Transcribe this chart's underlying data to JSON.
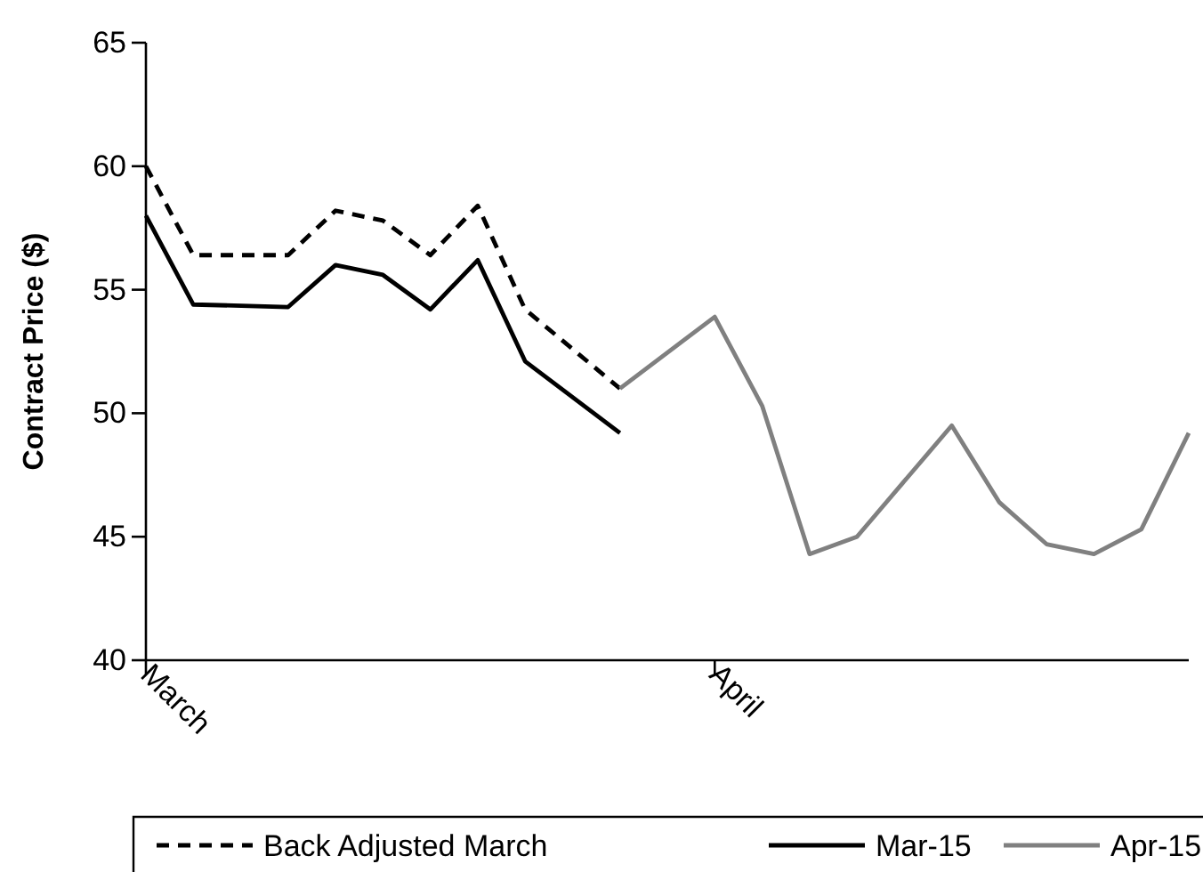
{
  "chart_data": {
    "type": "line",
    "ylabel": "Contract Price ($)",
    "categories": [
      "March",
      null,
      null,
      null,
      null,
      null,
      null,
      null,
      null,
      null,
      null,
      null,
      "April",
      null,
      null,
      null,
      null,
      null,
      null,
      null,
      null,
      null,
      null
    ],
    "ylim": [
      40,
      65
    ],
    "yticks": [
      40,
      45,
      50,
      55,
      60,
      65
    ],
    "grid": false,
    "legend": "bottom",
    "marker": "none",
    "series": [
      {
        "name": "Back Adjusted March",
        "color": "#000000",
        "line_style": "dashed",
        "values": [
          60,
          56.4,
          null,
          56.4,
          58.2,
          57.8,
          56.4,
          58.4,
          54.2,
          null,
          51,
          null,
          null,
          null,
          null,
          null,
          null,
          null,
          null,
          null,
          null,
          null,
          null
        ]
      },
      {
        "name": "Mar-15",
        "color": "#000000",
        "line_style": "solid",
        "values": [
          58,
          54.4,
          null,
          54.3,
          56,
          55.6,
          54.2,
          56.2,
          52.1,
          null,
          49.2,
          null,
          null,
          null,
          null,
          null,
          null,
          null,
          null,
          null,
          null,
          null,
          null
        ]
      },
      {
        "name": "Apr-15",
        "color": "#808080",
        "line_style": "solid",
        "values": [
          null,
          null,
          null,
          null,
          null,
          null,
          null,
          null,
          null,
          null,
          51,
          null,
          53.9,
          50.3,
          44.3,
          45,
          null,
          49.5,
          46.4,
          44.7,
          44.3,
          45.3,
          49.2
        ]
      }
    ]
  }
}
